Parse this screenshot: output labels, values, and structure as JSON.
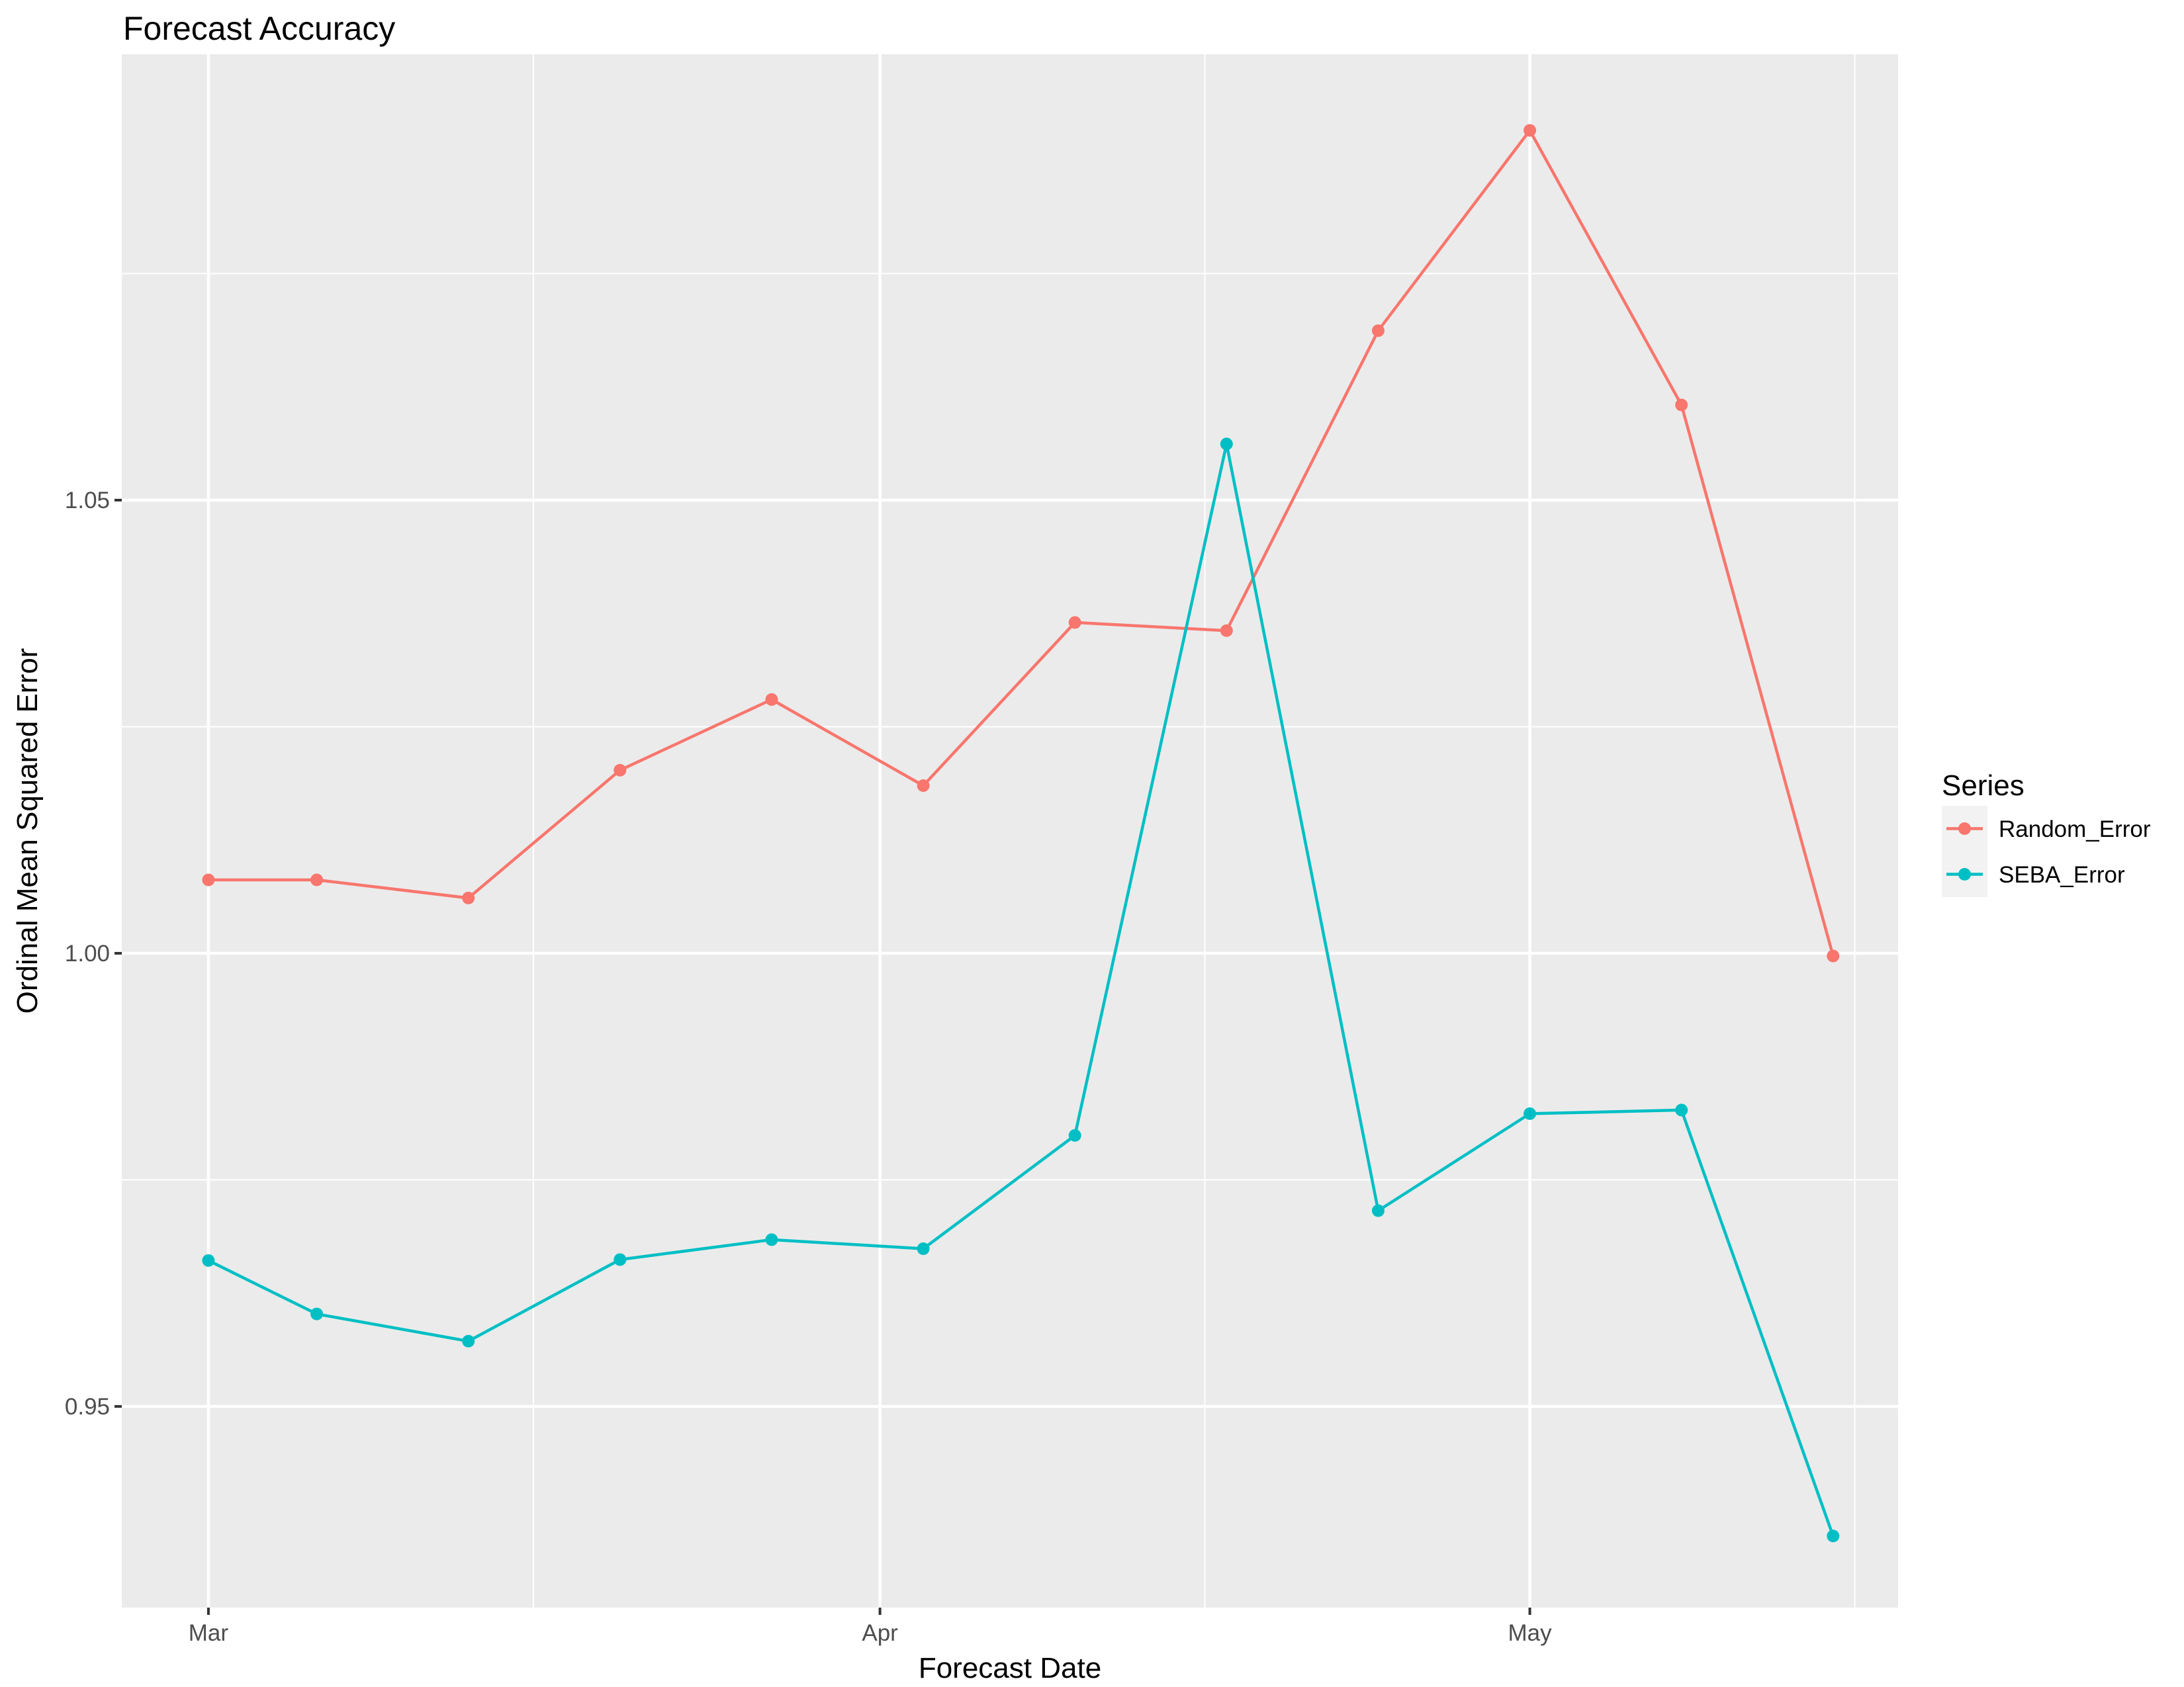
{
  "chart_data": {
    "type": "line",
    "title": "Forecast Accuracy",
    "xlabel": "Forecast Date",
    "ylabel": "Ordinal Mean Squared Error",
    "x_type": "date",
    "x": [
      "2017-03-01",
      "2017-03-06",
      "2017-03-13",
      "2017-03-20",
      "2017-03-27",
      "2017-04-03",
      "2017-04-10",
      "2017-04-17",
      "2017-04-24",
      "2017-05-01",
      "2017-05-08",
      "2017-05-15"
    ],
    "xlim": [
      "2017-02-25",
      "2017-05-18"
    ],
    "x_ticks": [
      {
        "date": "2017-03-01",
        "label": "Mar"
      },
      {
        "date": "2017-04-01",
        "label": "Apr"
      },
      {
        "date": "2017-05-01",
        "label": "May"
      }
    ],
    "x_minor_ticks": [
      "2017-03-16",
      "2017-04-16",
      "2017-05-16"
    ],
    "ylim": [
      0.9278,
      1.0992
    ],
    "y_ticks": [
      {
        "value": 0.95,
        "label": "0.95"
      },
      {
        "value": 1.0,
        "label": "1.00"
      },
      {
        "value": 1.05,
        "label": "1.05"
      }
    ],
    "y_minor_ticks": [
      0.975,
      1.025,
      1.075
    ],
    "grid": true,
    "legend": {
      "title": "Series",
      "position": "right"
    },
    "series": [
      {
        "name": "Random_Error",
        "color": "#F8766D",
        "values": [
          1.0081,
          1.0081,
          1.0061,
          1.0202,
          1.028,
          1.0185,
          1.0365,
          1.0356,
          1.0687,
          1.0908,
          1.0605,
          0.9997
        ]
      },
      {
        "name": "SEBA_Error",
        "color": "#00BFC4",
        "values": [
          0.9661,
          0.9602,
          0.9572,
          0.9662,
          0.9684,
          0.9674,
          0.9799,
          1.0562,
          0.9716,
          0.9823,
          0.9827,
          0.9357
        ]
      }
    ]
  }
}
